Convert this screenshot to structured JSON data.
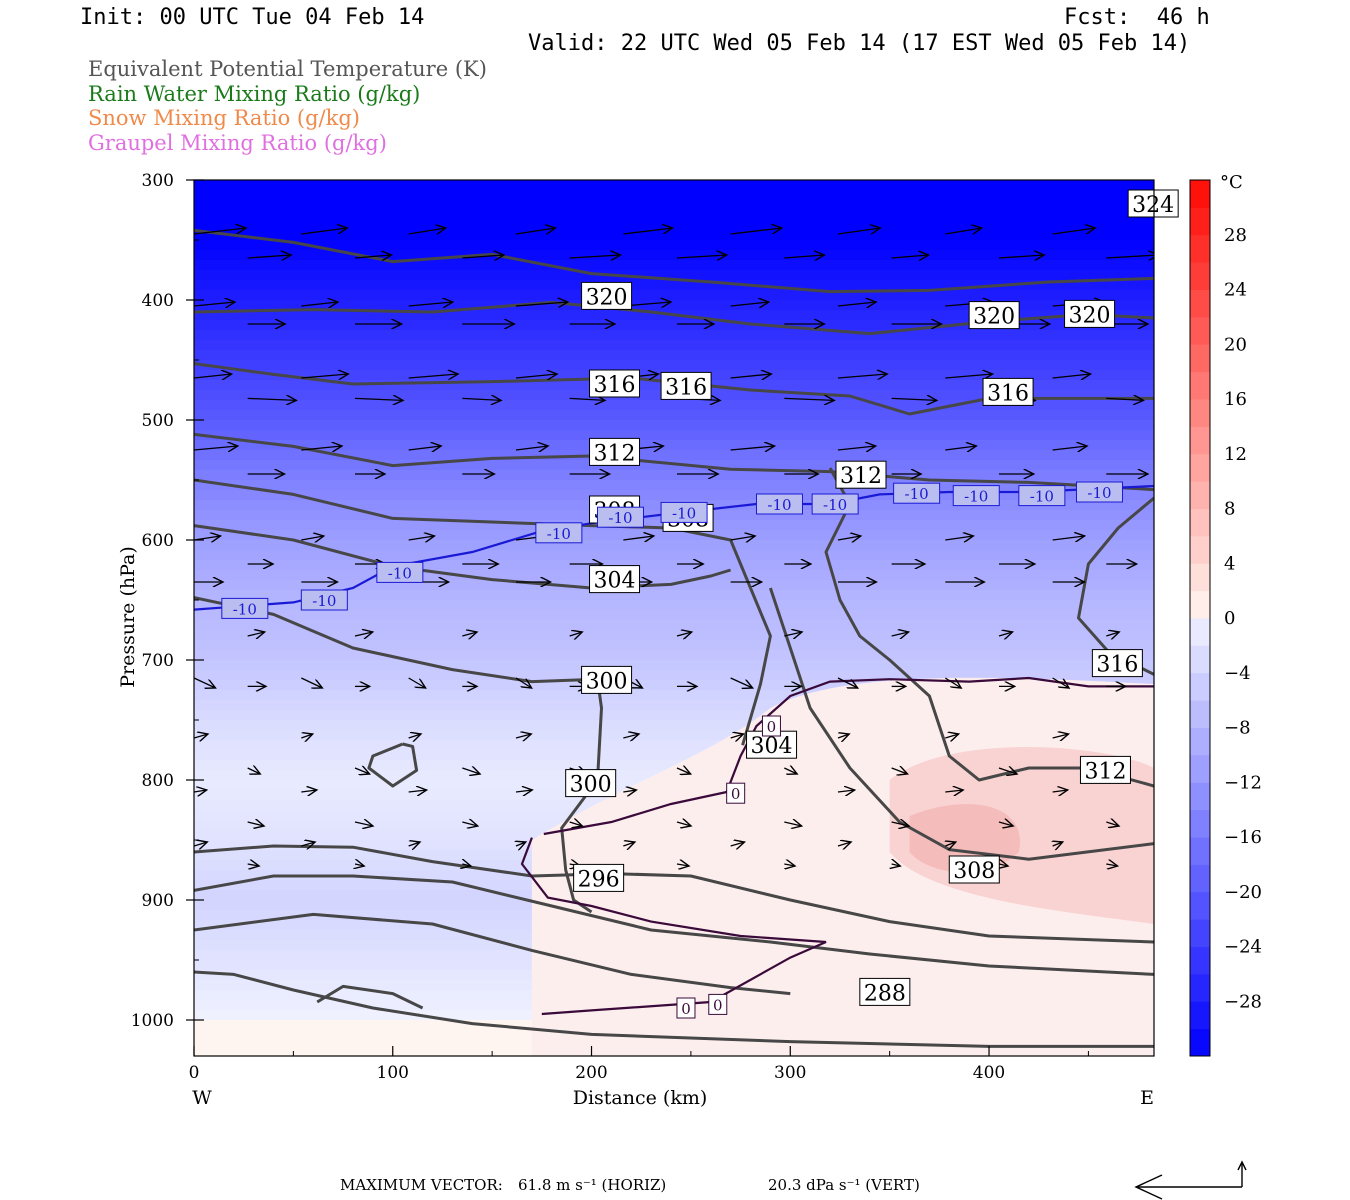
{
  "header": {
    "init": "Init: 00 UTC Tue 04 Feb 14",
    "fcst": "Fcst:  46 h",
    "valid": "Valid: 22 UTC Wed 05 Feb 14 (17 EST Wed 05 Feb 14)"
  },
  "legend": [
    {
      "label": "Equivalent Potential Temperature (K)",
      "color": "#555555"
    },
    {
      "label": "Rain Water Mixing Ratio (g/kg)",
      "color": "#1a7a1a"
    },
    {
      "label": "Snow Mixing Ratio (g/kg)",
      "color": "#f08a4b"
    },
    {
      "label": "Graupel Mixing Ratio (g/kg)",
      "color": "#e070e0"
    }
  ],
  "chart_data": {
    "type": "heatmap",
    "xlabel": "Distance (km)",
    "ylabel": "Pressure (hPa)",
    "x_ticks": [
      0,
      100,
      200,
      300,
      400
    ],
    "xlim": [
      0,
      483
    ],
    "y_ticks": [
      300,
      400,
      500,
      600,
      700,
      800,
      900,
      1000
    ],
    "ylim": [
      1030,
      300
    ],
    "x_end_labels": {
      "left": "W",
      "right": "E"
    },
    "colorbar": {
      "unit": "°C",
      "tick_labels": [
        28,
        24,
        20,
        16,
        12,
        8,
        4,
        0,
        -4,
        -8,
        -12,
        -16,
        -20,
        -24,
        -28
      ],
      "levels": [
        -32,
        -30,
        -28,
        -26,
        -24,
        -22,
        -20,
        -18,
        -16,
        -14,
        -12,
        -10,
        -8,
        -6,
        -4,
        -2,
        0,
        2,
        4,
        6,
        8,
        10,
        12,
        14,
        16,
        18,
        20,
        22,
        24,
        26,
        28,
        30,
        32
      ]
    },
    "temperature_field": [
      {
        "p": 300,
        "t": -34
      },
      {
        "p": 350,
        "t": -32
      },
      {
        "p": 400,
        "t": -28
      },
      {
        "p": 450,
        "t": -24
      },
      {
        "p": 500,
        "t": -20
      },
      {
        "p": 550,
        "t": -15
      },
      {
        "p": 600,
        "t": -11
      },
      {
        "p": 650,
        "t": -8
      },
      {
        "p": 700,
        "t": -6
      },
      {
        "p": 750,
        "t": -3
      },
      {
        "p": 800,
        "t": -1
      },
      {
        "p": 850,
        "t": -2
      },
      {
        "p": 900,
        "t": -4
      },
      {
        "p": 950,
        "t": -2
      },
      {
        "p": 1000,
        "t": 0
      }
    ],
    "warm_region_note": "",
    "theta_e_labels": [
      {
        "text": "324",
        "x": 470,
        "p": 320
      },
      {
        "text": "320",
        "x": 195,
        "p": 397
      },
      {
        "text": "320",
        "x": 390,
        "p": 413
      },
      {
        "text": "320",
        "x": 438,
        "p": 412
      },
      {
        "text": "316",
        "x": 199,
        "p": 470
      },
      {
        "text": "316",
        "x": 235,
        "p": 472
      },
      {
        "text": "316",
        "x": 397,
        "p": 477
      },
      {
        "text": "312",
        "x": 199,
        "p": 527
      },
      {
        "text": "312",
        "x": 323,
        "p": 546
      },
      {
        "text": "308",
        "x": 199,
        "p": 575
      },
      {
        "text": "308",
        "x": 236,
        "p": 582
      },
      {
        "text": "304",
        "x": 199,
        "p": 633
      },
      {
        "text": "300",
        "x": 195,
        "p": 717
      },
      {
        "text": "304",
        "x": 278,
        "p": 771
      },
      {
        "text": "300",
        "x": 187,
        "p": 803
      },
      {
        "text": "316",
        "x": 452,
        "p": 703
      },
      {
        "text": "312",
        "x": 446,
        "p": 792
      },
      {
        "text": "308",
        "x": 380,
        "p": 875
      },
      {
        "text": "296",
        "x": 191,
        "p": 882
      },
      {
        "text": "288",
        "x": 335,
        "p": 977
      }
    ],
    "isotherm_labels": [
      {
        "text": "-10",
        "x": 14,
        "p": 657
      },
      {
        "text": "-10",
        "x": 54,
        "p": 650
      },
      {
        "text": "-10",
        "x": 92,
        "p": 627
      },
      {
        "text": "-10",
        "x": 172,
        "p": 594
      },
      {
        "text": "-10",
        "x": 203,
        "p": 581
      },
      {
        "text": "-10",
        "x": 235,
        "p": 577
      },
      {
        "text": "-10",
        "x": 283,
        "p": 570
      },
      {
        "text": "-10",
        "x": 311,
        "p": 570
      },
      {
        "text": "-10",
        "x": 352,
        "p": 561
      },
      {
        "text": "-10",
        "x": 382,
        "p": 563
      },
      {
        "text": "-10",
        "x": 415,
        "p": 563
      },
      {
        "text": "-10",
        "x": 444,
        "p": 560
      },
      {
        "text": "0",
        "x": 286,
        "p": 755
      },
      {
        "text": "0",
        "x": 268,
        "p": 811
      },
      {
        "text": "0",
        "x": 243,
        "p": 990
      },
      {
        "text": "0",
        "x": 259,
        "p": 987
      }
    ],
    "footer": {
      "max_vector_label": "MAXIMUM VECTOR:",
      "horiz": "61.8 m s⁻¹ (HORIZ)",
      "vert": "20.3 dPa s⁻¹ (VERT)"
    }
  }
}
